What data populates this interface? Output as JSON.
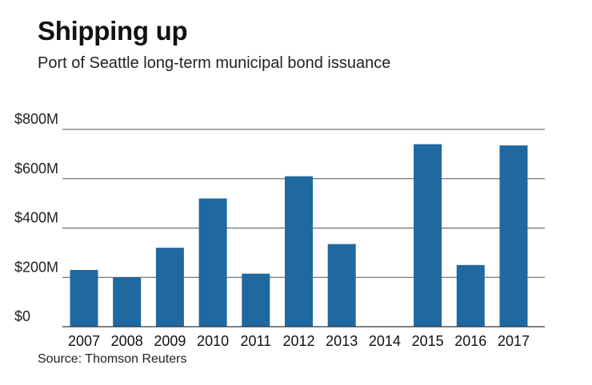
{
  "chart_data": {
    "type": "bar",
    "title": "Shipping up",
    "subtitle": "Port of Seattle long-term municipal bond issuance",
    "source": "Source: Thomson Reuters",
    "categories": [
      "2007",
      "2008",
      "2009",
      "2010",
      "2011",
      "2012",
      "2013",
      "2014",
      "2015",
      "2016",
      "2017"
    ],
    "values": [
      230,
      200,
      320,
      520,
      215,
      610,
      335,
      0,
      740,
      250,
      735
    ],
    "ylim": [
      0,
      800
    ],
    "yticks": [
      0,
      200,
      400,
      600,
      800
    ],
    "ytick_labels": [
      "$0",
      "$200M",
      "$400M",
      "$600M",
      "$800M"
    ],
    "xlabel": "",
    "ylabel": "",
    "bar_color": "#1f68a0",
    "grid": true
  }
}
